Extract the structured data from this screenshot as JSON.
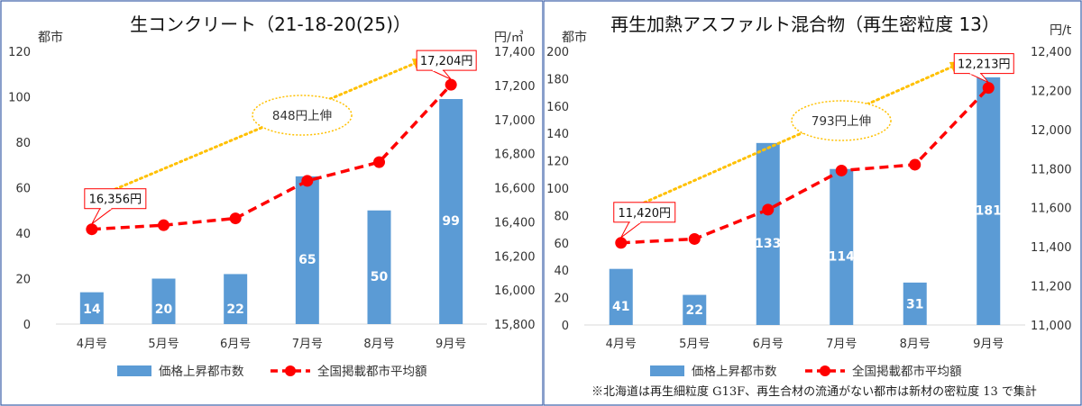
{
  "colors": {
    "bar": "#5b9bd5",
    "line": "#ff0000",
    "arrow": "#ffc000",
    "frame": "#3b5fa8",
    "callout_border": "#ff0000"
  },
  "legend": {
    "bar_label": "価格上昇都市数",
    "line_label": "全国掲載都市平均額"
  },
  "chart_data": [
    {
      "type": "bar",
      "title": "生コンクリート（21-18-20(25)）",
      "categories": [
        "4月号",
        "5月号",
        "6月号",
        "7月号",
        "8月号",
        "9月号"
      ],
      "ylabel_left": "都市",
      "ylabel_right": "円/㎥",
      "ylim_left": [
        0,
        120
      ],
      "ylim_right": [
        15800,
        17400
      ],
      "left_ticks": [
        "0",
        "20",
        "40",
        "60",
        "80",
        "100",
        "120"
      ],
      "right_ticks": [
        "15,800",
        "16,000",
        "16,200",
        "16,400",
        "16,600",
        "16,800",
        "17,000",
        "17,200",
        "17,400"
      ],
      "series": [
        {
          "name": "価格上昇都市数",
          "type": "bar",
          "axis": "left",
          "values": [
            14,
            20,
            22,
            65,
            50,
            99
          ]
        },
        {
          "name": "全国掲載都市平均額",
          "type": "line",
          "axis": "right",
          "values": [
            16356,
            16380,
            16420,
            16640,
            16750,
            17204
          ]
        }
      ],
      "callout_start": "16,356円",
      "callout_end": "17,204円",
      "increase_label": "848円上伸",
      "legend_position": "bottom",
      "grid": false
    },
    {
      "type": "bar",
      "title": "再生加熱アスファルト混合物（再生密粒度 13）",
      "categories": [
        "4月号",
        "5月号",
        "6月号",
        "7月号",
        "8月号",
        "9月号"
      ],
      "ylabel_left": "都市",
      "ylabel_right": "円/t",
      "ylim_left": [
        0,
        200
      ],
      "ylim_right": [
        11000,
        12400
      ],
      "left_ticks": [
        "0",
        "20",
        "40",
        "60",
        "80",
        "100",
        "120",
        "140",
        "160",
        "180",
        "200"
      ],
      "right_ticks": [
        "11,000",
        "11,200",
        "11,400",
        "11,600",
        "11,800",
        "12,000",
        "12,200",
        "12,400"
      ],
      "series": [
        {
          "name": "価格上昇都市数",
          "type": "bar",
          "axis": "left",
          "values": [
            41,
            22,
            133,
            114,
            31,
            181
          ]
        },
        {
          "name": "全国掲載都市平均額",
          "type": "line",
          "axis": "right",
          "values": [
            11420,
            11440,
            11590,
            11790,
            11820,
            12213
          ]
        }
      ],
      "callout_start": "11,420円",
      "callout_end": "12,213円",
      "increase_label": "793円上伸",
      "legend_position": "bottom",
      "grid": false
    }
  ],
  "note": "※北海道は再生細粒度 G13F、再生合材の流通がない都市は新材の密粒度 13 で集計"
}
